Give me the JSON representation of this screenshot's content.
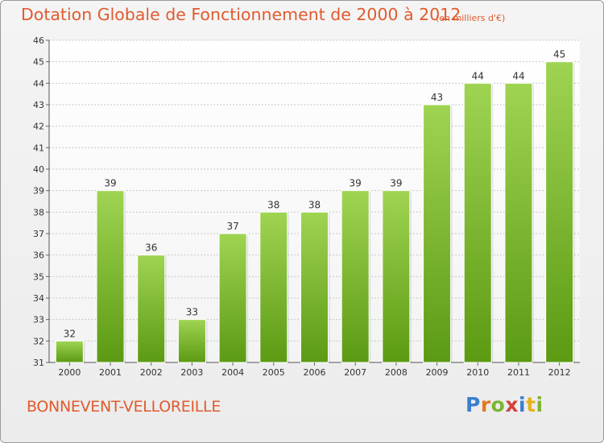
{
  "title": "Dotation Globale de Fonctionnement de 2000 à 2012",
  "unit": "(en milliers d'€)",
  "commune": "BONNEVENT-VELLOREILLE",
  "logo": {
    "text": "Proxiti",
    "letter_colors": [
      "#3a7fd0",
      "#e07a22",
      "#7bb531",
      "#d4413a",
      "#3a7fd0",
      "#e6b21e",
      "#7bb531"
    ]
  },
  "colors": {
    "text_accent": "#e05b2d",
    "bar_top": "#9fd452",
    "bar_bottom": "#5c9a13",
    "grid": "#c8c8c8"
  },
  "chart_data": {
    "type": "bar",
    "categories": [
      "2000",
      "2001",
      "2002",
      "2003",
      "2004",
      "2005",
      "2006",
      "2007",
      "2008",
      "2009",
      "2010",
      "2011",
      "2012"
    ],
    "values": [
      32,
      39,
      36,
      33,
      37,
      38,
      38,
      39,
      39,
      43,
      44,
      44,
      45
    ],
    "ylim": [
      31,
      46
    ],
    "yticks": [
      31,
      32,
      33,
      34,
      35,
      36,
      37,
      38,
      39,
      40,
      41,
      42,
      43,
      44,
      45,
      46
    ],
    "grid": true,
    "xlabel": "",
    "ylabel": ""
  }
}
